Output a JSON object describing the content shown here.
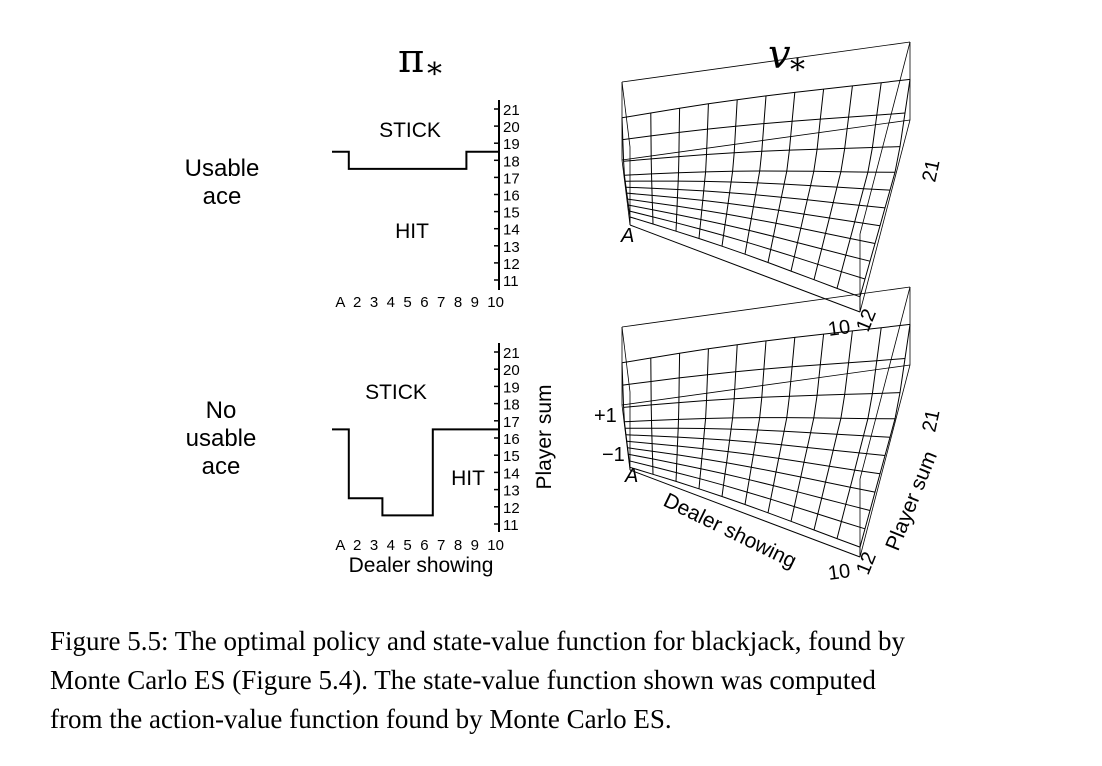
{
  "headers": {
    "policy": "π",
    "value": "v",
    "subscript": "*"
  },
  "rows": [
    {
      "label_lines": [
        "Usable",
        "ace"
      ],
      "region_top": "STICK",
      "region_bottom": "HIT",
      "stick_threshold": [
        19,
        18,
        18,
        18,
        18,
        18,
        18,
        18,
        19,
        19
      ]
    },
    {
      "label_lines": [
        "No",
        "usable",
        "ace"
      ],
      "region_top": "STICK",
      "region_bottom": "HIT",
      "stick_threshold": [
        17,
        13,
        13,
        12,
        12,
        12,
        17,
        17,
        17,
        17
      ]
    }
  ],
  "policy_axes": {
    "x_ticks": [
      "A",
      "2",
      "3",
      "4",
      "5",
      "6",
      "7",
      "8",
      "9",
      "10"
    ],
    "y_ticks": [
      "11",
      "12",
      "13",
      "14",
      "15",
      "16",
      "17",
      "18",
      "19",
      "20",
      "21"
    ],
    "x_label": "Dealer showing",
    "y_label": "Player sum"
  },
  "value_axes": {
    "dealer_labels": [
      "A",
      "10"
    ],
    "player_labels": [
      "12",
      "21"
    ],
    "z_labels": [
      "+1",
      "−1"
    ],
    "x_label": "Dealer showing",
    "y_label": "Player sum"
  },
  "caption": {
    "lines": [
      "Figure 5.5: The optimal policy and state-value function for blackjack, found by",
      "Monte Carlo ES (Figure 5.4).  The state-value function shown was computed",
      "from the action-value function found by Monte Carlo ES."
    ]
  }
}
